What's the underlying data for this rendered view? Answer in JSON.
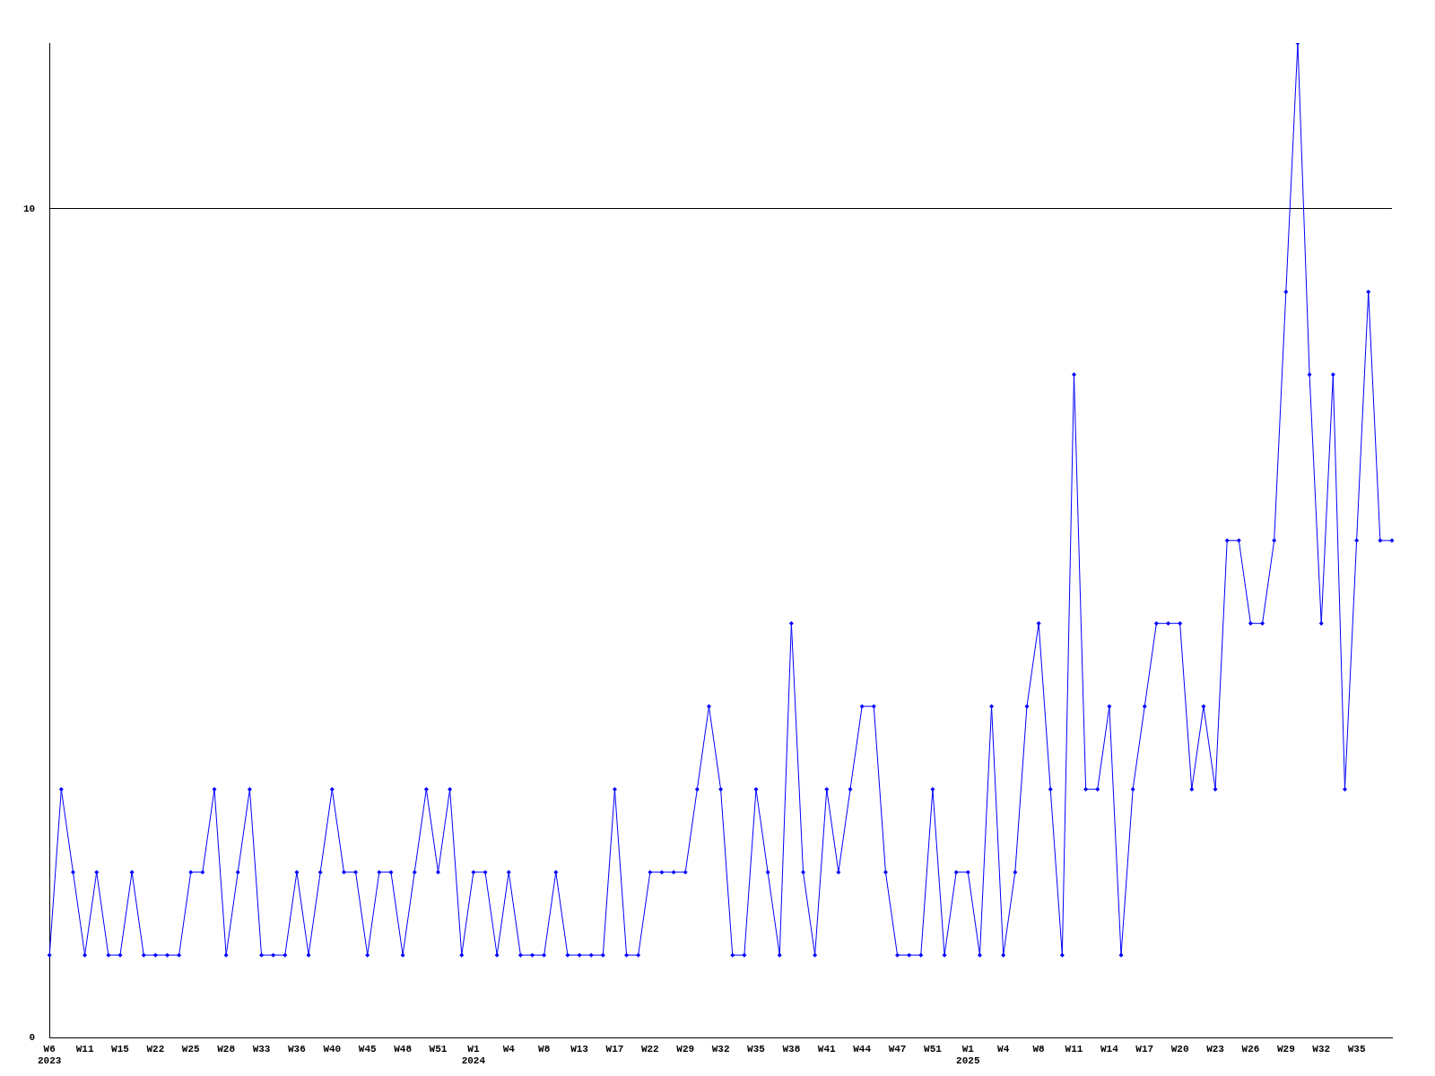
{
  "chart_data": {
    "type": "line",
    "categories": [
      "W6\n2023",
      null,
      null,
      "W11",
      null,
      null,
      "W15",
      null,
      null,
      "W22",
      null,
      null,
      "W25",
      null,
      null,
      "W28",
      null,
      null,
      "W33",
      null,
      null,
      "W36",
      null,
      null,
      "W40",
      null,
      null,
      "W45",
      null,
      null,
      "W48",
      null,
      null,
      "W51",
      null,
      null,
      "W1\n2024",
      null,
      null,
      "W4",
      null,
      null,
      "W8",
      null,
      null,
      "W13",
      null,
      null,
      "W17",
      null,
      null,
      "W22",
      null,
      null,
      "W29",
      null,
      null,
      "W32",
      null,
      null,
      "W35",
      null,
      null,
      "W38",
      null,
      null,
      "W41",
      null,
      null,
      "W44",
      null,
      null,
      "W47",
      null,
      null,
      "W51",
      null,
      null,
      "W1\n2025",
      null,
      null,
      "W4",
      null,
      null,
      "W8",
      null,
      null,
      "W11",
      null,
      null,
      "W14",
      null,
      null,
      "W17",
      null,
      null,
      "W20",
      null,
      null,
      "W23",
      null,
      null,
      "W26",
      null,
      null,
      "W29",
      null,
      null,
      "W32",
      null,
      null,
      "W35",
      null,
      null,
      null
    ],
    "series": [
      {
        "color": "#0000ff",
        "values": [
          1,
          3,
          2,
          1,
          2,
          1,
          1,
          2,
          1,
          1,
          1,
          1,
          2,
          2,
          3,
          1,
          2,
          3,
          1,
          1,
          1,
          2,
          1,
          2,
          3,
          2,
          2,
          1,
          2,
          2,
          1,
          2,
          3,
          2,
          3,
          1,
          2,
          2,
          1,
          2,
          1,
          1,
          1,
          2,
          1,
          1,
          1,
          1,
          3,
          1,
          1,
          2,
          2,
          2,
          2,
          3,
          4,
          3,
          1,
          1,
          3,
          2,
          1,
          5,
          2,
          1,
          3,
          2,
          3,
          4,
          4,
          2,
          1,
          1,
          1,
          3,
          1,
          2,
          2,
          1,
          4,
          1,
          2,
          4,
          5,
          3,
          1,
          8,
          3,
          3,
          4,
          1,
          3,
          4,
          5,
          5,
          5,
          3,
          4,
          3,
          6,
          6,
          5,
          5,
          6,
          9,
          12,
          8,
          5,
          8,
          3,
          6,
          9,
          6,
          6
        ]
      }
    ],
    "ylim": [
      0,
      12
    ],
    "yticks": [
      0,
      10
    ],
    "grid": "y",
    "marker": "diamond",
    "line_style": "solid",
    "legend": false
  }
}
